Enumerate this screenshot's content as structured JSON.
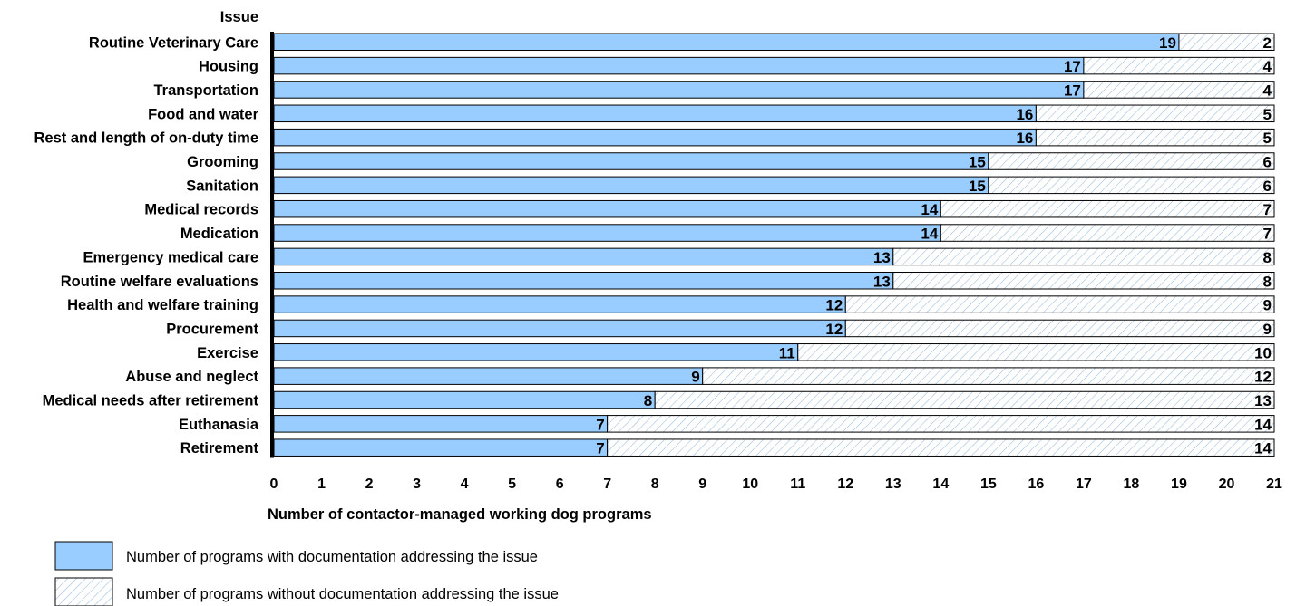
{
  "chart_data": {
    "type": "bar",
    "orientation": "horizontal",
    "stacked": true,
    "category_axis_title": "Issue",
    "xlabel": "Number of contactor-managed working dog programs",
    "xlim": [
      0,
      21
    ],
    "xticks": [
      "0",
      "1",
      "2",
      "3",
      "4",
      "5",
      "6",
      "7",
      "8",
      "9",
      "10",
      "11",
      "12",
      "13",
      "14",
      "15",
      "16",
      "17",
      "18",
      "19",
      "20",
      "21"
    ],
    "categories": [
      "Routine Veterinary Care",
      "Housing",
      "Transportation",
      "Food and water",
      "Rest and length of on-duty time",
      "Grooming",
      "Sanitation",
      "Medical records",
      "Medication",
      "Emergency medical care",
      "Routine welfare evaluations",
      "Health and welfare training",
      "Procurement",
      "Exercise",
      "Abuse and neglect",
      "Medical needs after retirement",
      "Euthanasia",
      "Retirement"
    ],
    "series": [
      {
        "name": "Number of programs with documentation addressing the issue",
        "values": [
          19,
          17,
          17,
          16,
          16,
          15,
          15,
          14,
          14,
          13,
          13,
          12,
          12,
          11,
          9,
          8,
          7,
          7
        ]
      },
      {
        "name": "Number of programs without documentation addressing the issue",
        "values": [
          2,
          4,
          4,
          5,
          5,
          6,
          6,
          7,
          7,
          8,
          8,
          9,
          9,
          10,
          12,
          13,
          14,
          14
        ]
      }
    ],
    "data_labels": true,
    "grid": false,
    "legend_position": "bottom-left"
  },
  "colors": {
    "with_documentation_fill": "#99ccff",
    "without_documentation_hatch": "#99bbdd",
    "bar_outline": "#000000",
    "background": "#ffffff"
  }
}
